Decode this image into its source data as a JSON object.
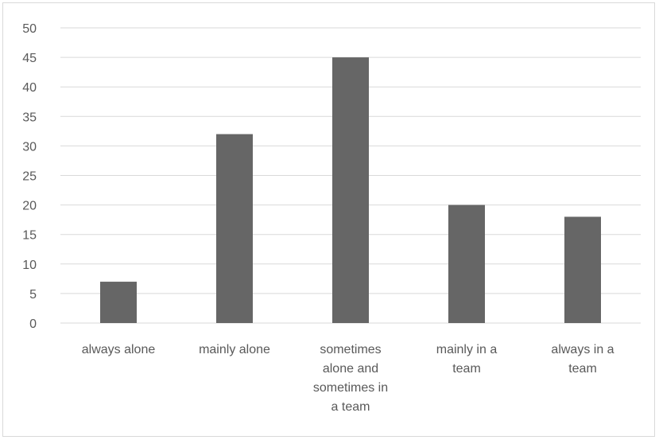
{
  "chart_data": {
    "type": "bar",
    "title": "",
    "xlabel": "",
    "ylabel": "",
    "categories": [
      [
        "always alone"
      ],
      [
        "mainly alone"
      ],
      [
        "sometimes",
        "alone and",
        "sometimes in",
        "a team"
      ],
      [
        "mainly in a",
        "team"
      ],
      [
        "always in a",
        "team"
      ]
    ],
    "values": [
      7,
      32,
      45,
      20,
      18
    ],
    "ylim": [
      0,
      50
    ],
    "yticks": [
      0,
      5,
      10,
      15,
      20,
      25,
      30,
      35,
      40,
      45,
      50
    ],
    "grid": true,
    "legend": "none",
    "bar_color": "#666666",
    "grid_color": "#d9d9d9"
  }
}
